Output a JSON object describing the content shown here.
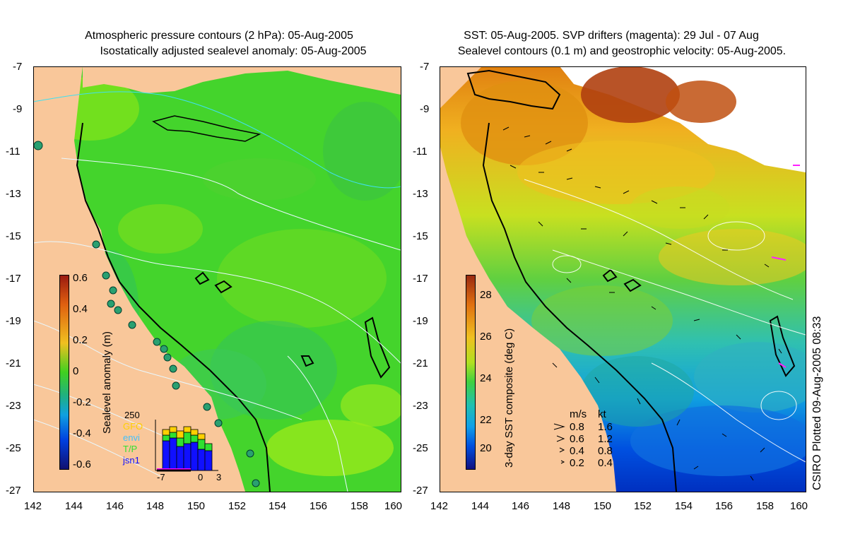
{
  "left_panel": {
    "title_line1": "Atmospheric pressure contours (2 hPa): 05-Aug-2005",
    "title_line2": "Isostatically adjusted sealevel anomaly: 05-Aug-2005",
    "colorbar": {
      "label": "Sealevel anomaly (m)",
      "ticks": [
        "0.6",
        "0.4",
        "0.2",
        "0",
        "-0.2",
        "-0.4",
        "-0.6"
      ]
    },
    "inset": {
      "count_label": "250",
      "legend": [
        {
          "name": "GFO",
          "color": "#ffd000"
        },
        {
          "name": "envi",
          "color": "#40c0ff"
        },
        {
          "name": "T/P",
          "color": "#30e030"
        },
        {
          "name": "jsn1",
          "color": "#1010ff"
        }
      ],
      "x_ticks": [
        "-7",
        "0",
        "3"
      ]
    }
  },
  "right_panel": {
    "title_line1": "SST: 05-Aug-2005. SVP drifters (magenta): 29 Jul - 07 Aug",
    "title_line2": "Sealevel contours (0.1 m) and geostrophic velocity: 05-Aug-2005.",
    "colorbar": {
      "label": "3-day SST composite (deg C)",
      "ticks": [
        "28",
        "26",
        "24",
        "22",
        "20"
      ]
    },
    "velocity_legend": {
      "header_ms": "m/s",
      "header_kt": "kt",
      "rows": [
        {
          "ms": "0.8",
          "kt": "1.6"
        },
        {
          "ms": "0.6",
          "kt": "1.2"
        },
        {
          "ms": "0.4",
          "kt": "0.8"
        },
        {
          "ms": "0.2",
          "kt": "0.4"
        }
      ]
    }
  },
  "axes": {
    "lat_ticks": [
      "-7",
      "-9",
      "-11",
      "-13",
      "-15",
      "-17",
      "-19",
      "-21",
      "-23",
      "-25",
      "-27"
    ],
    "lon_ticks": [
      "142",
      "144",
      "146",
      "148",
      "150",
      "152",
      "154",
      "156",
      "158",
      "160"
    ]
  },
  "plot_stamp": "CSIRO Plotted 09-Aug-2005 08:33",
  "colors": {
    "land": "#f9c79a",
    "sla_background": "#44d42c",
    "sst_warm": "#f0c020",
    "sst_cool": "#0060e0"
  }
}
